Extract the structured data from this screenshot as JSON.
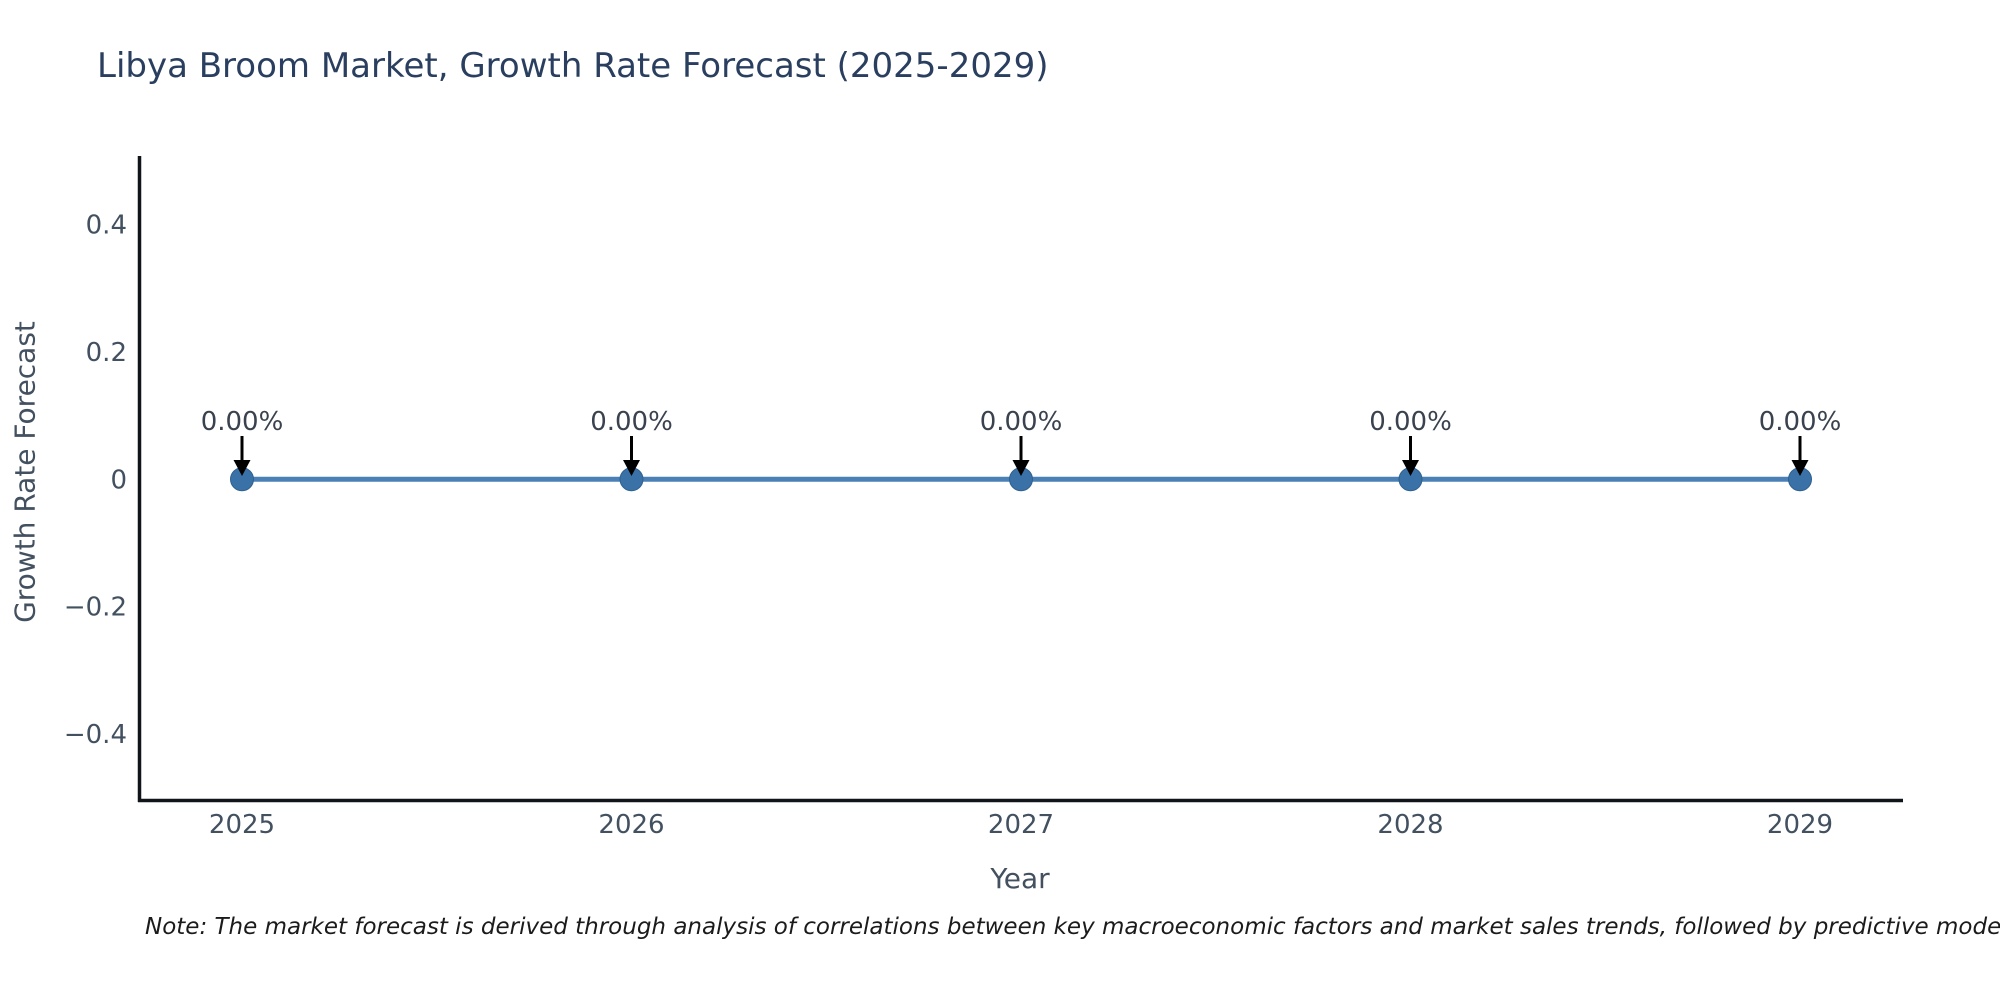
{
  "note": "Note: The market forecast is derived through analysis of correlations between key macroeconomic factors and market sales trends, followed by predictive modeling to project future sa",
  "colors": {
    "title": "#2a3f5f",
    "tick_label": "#42505f",
    "annotation": "#39424e",
    "axis_spine": "#111418",
    "line": "#4a80b5",
    "marker_fill": "#3a72a8",
    "marker_edge": "#2f618f",
    "arrow": "#000000",
    "note_text": "#1b1b1b",
    "background": "#ffffff"
  },
  "chart_data": {
    "type": "line",
    "title": "Libya Broom Market, Growth Rate Forecast (2025-2029)",
    "xlabel": "Year",
    "ylabel": "Growth Rate Forecast",
    "categories": [
      "2025",
      "2026",
      "2027",
      "2028",
      "2029"
    ],
    "series": [
      {
        "name": "Growth Rate Forecast",
        "values": [
          0,
          0,
          0,
          0,
          0
        ]
      }
    ],
    "point_labels": [
      "0.00%",
      "0.00%",
      "0.00%",
      "0.00%",
      "0.00%"
    ],
    "yticks": [
      {
        "value": 0.4,
        "label": "0.4"
      },
      {
        "value": 0.2,
        "label": "0.2"
      },
      {
        "value": 0,
        "label": "0"
      },
      {
        "value": -0.2,
        "label": "−0.2"
      },
      {
        "value": -0.4,
        "label": "−0.4"
      }
    ],
    "ylim": [
      -0.504,
      0.504
    ],
    "grid": false,
    "legend": "none",
    "annotation_style": "black-down-arrow"
  }
}
